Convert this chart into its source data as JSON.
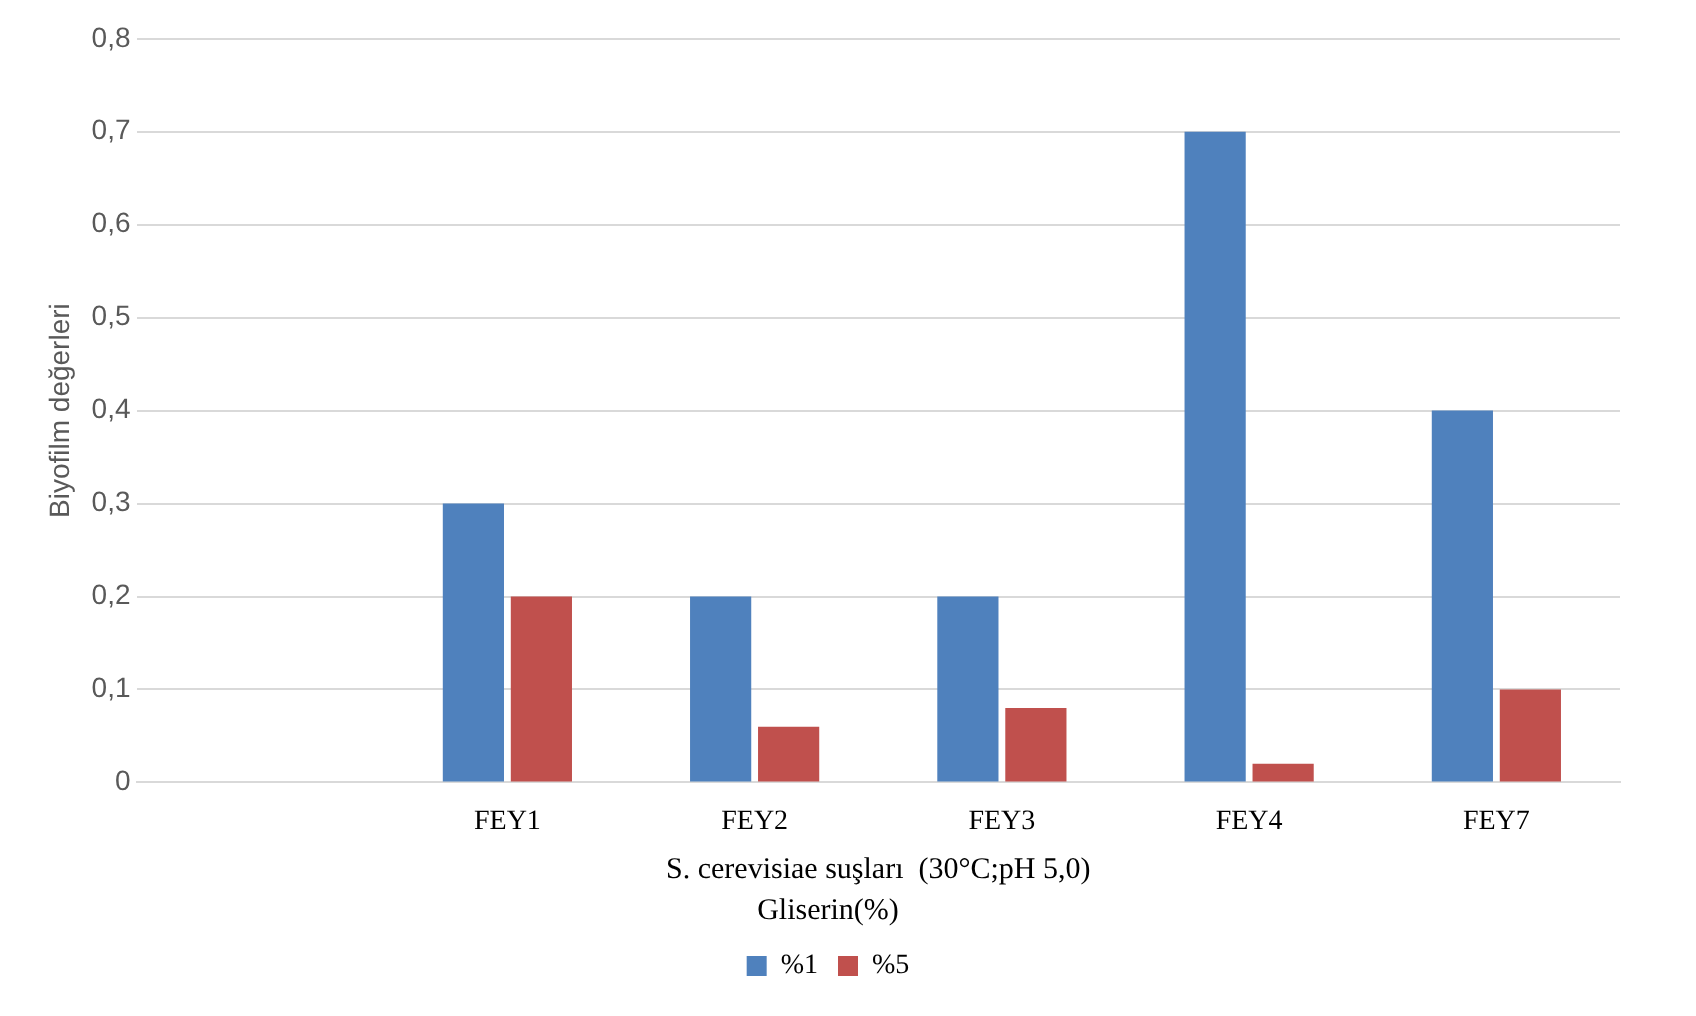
{
  "chart_data": {
    "type": "bar",
    "ylabel": "Biyofilm değerleri",
    "xlabel": "S. cerevisiae suşları  (30°C;pH 5,0)",
    "legend_title": "Gliserin(%)",
    "categories": [
      null,
      "FEY1",
      "FEY2",
      "FEY3",
      "FEY4",
      "FEY7"
    ],
    "series": [
      {
        "name": "%1",
        "color": "#4f81bd",
        "values": [
          null,
          0.3,
          0.2,
          0.2,
          0.7,
          0.4
        ]
      },
      {
        "name": "%5",
        "color": "#c0504d",
        "values": [
          null,
          0.2,
          0.06,
          0.08,
          0.02,
          0.1
        ]
      }
    ],
    "ylim": [
      0,
      0.8
    ],
    "yticks": [
      0,
      {
        "value": 0.1,
        "label": "0,1"
      },
      {
        "value": 0.2,
        "label": "0,2"
      },
      {
        "value": 0.3,
        "label": "0,3"
      },
      {
        "value": 0.4,
        "label": "0,4"
      },
      {
        "value": 0.5,
        "label": "0,5"
      },
      {
        "value": 0.6,
        "label": "0,6"
      },
      {
        "value": 0.7,
        "label": "0,7"
      },
      {
        "value": 0.8,
        "label": "0,8"
      }
    ],
    "grid": "y",
    "legend": "bottom"
  }
}
